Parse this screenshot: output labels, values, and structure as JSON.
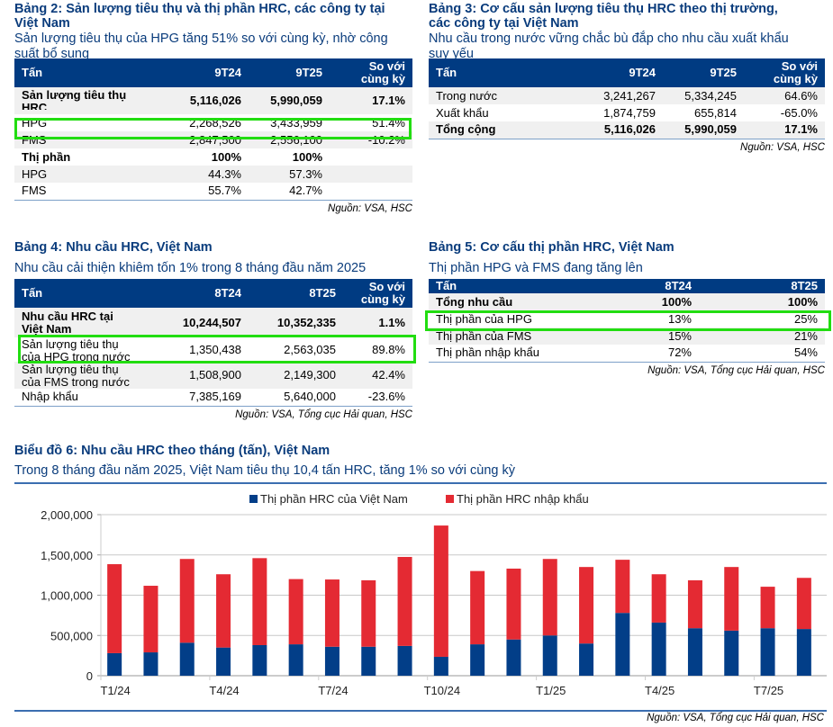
{
  "table2": {
    "title_line1": "Bảng 2: Sản lượng tiêu thụ và thị phần HRC, các công ty tại",
    "title_line2": "Việt Nam",
    "subtitle_line1": "Sản lượng tiêu thụ của HPG tăng 51% so với cùng kỳ, nhờ công",
    "subtitle_line2": "suất bổ sung",
    "headers": [
      "Tấn",
      "9T24",
      "9T25",
      "So với",
      "cùng kỳ"
    ],
    "rows": [
      {
        "label1": "Sản lượng tiêu thụ",
        "label2": "HRC",
        "c1": "5,116,026",
        "c2": "5,990,059",
        "c3": "17.1%"
      },
      {
        "label": "HPG",
        "c1": "2,268,526",
        "c2": "3,433,959",
        "c3": "51.4%"
      },
      {
        "label": "FMS",
        "c1": "2,847,500",
        "c2": "2,556,100",
        "c3": "-10.2%"
      },
      {
        "label": "Thị phần",
        "c1": "100%",
        "c2": "100%",
        "c3": ""
      },
      {
        "label": "HPG",
        "c1": "44.3%",
        "c2": "57.3%",
        "c3": ""
      },
      {
        "label": "FMS",
        "c1": "55.7%",
        "c2": "42.7%",
        "c3": ""
      }
    ],
    "source": "Nguồn: VSA, HSC"
  },
  "table3": {
    "title_line1": "Bảng 3: Cơ cấu sản lượng tiêu thụ HRC theo thị trường,",
    "title_line2": "các công ty tại Việt Nam",
    "subtitle_line1": "Nhu cầu trong nước vững chắc bù đắp cho nhu cầu xuất khẩu",
    "subtitle_line2": "suy yếu",
    "headers": [
      "Tấn",
      "9T24",
      "9T25",
      "So với",
      "cùng kỳ"
    ],
    "rows": [
      {
        "label": "Trong nước",
        "c1": "3,241,267",
        "c2": "5,334,245",
        "c3": "64.6%"
      },
      {
        "label": "Xuất khẩu",
        "c1": "1,874,759",
        "c2": "655,814",
        "c3": "-65.0%"
      },
      {
        "label": "Tổng cộng",
        "c1": "5,116,026",
        "c2": "5,990,059",
        "c3": "17.1%"
      }
    ],
    "source": "Nguồn: VSA, HSC"
  },
  "table4": {
    "title": "Bảng 4: Nhu cầu HRC, Việt Nam",
    "subtitle": "Nhu cầu cải thiện khiêm tốn 1% trong 8 tháng đầu năm 2025",
    "headers": [
      "Tấn",
      "8T24",
      "8T25",
      "So với",
      "cùng kỳ"
    ],
    "rows": [
      {
        "label1": "Nhu cầu HRC tại",
        "label2": "Việt Nam",
        "c1": "10,244,507",
        "c2": "10,352,335",
        "c3": "1.1%"
      },
      {
        "label1": "Sản lượng tiêu thụ",
        "label2": "của HPG trong nước",
        "c1": "1,350,438",
        "c2": "2,563,035",
        "c3": "89.8%"
      },
      {
        "label1": "Sản lượng tiêu thụ",
        "label2": "của FMS trong nước",
        "c1": "1,508,900",
        "c2": "2,149,300",
        "c3": "42.4%"
      },
      {
        "label": "Nhập khẩu",
        "c1": "7,385,169",
        "c2": "5,640,000",
        "c3": "-23.6%"
      }
    ],
    "source": "Nguồn: VSA, Tổng cục Hải quan, HSC"
  },
  "table5": {
    "title": "Bảng 5: Cơ cấu thị phần HRC, Việt Nam",
    "subtitle": "Thị phần HPG và FMS đang tăng lên",
    "headers": [
      "Tấn",
      "8T24",
      "8T25"
    ],
    "rows": [
      {
        "label": "Tổng nhu cầu",
        "c1": "100%",
        "c2": "100%"
      },
      {
        "label": "Thị phần của HPG",
        "c1": "13%",
        "c2": "25%"
      },
      {
        "label": "Thị phần của FMS",
        "c1": "15%",
        "c2": "21%"
      },
      {
        "label": "Thị phần nhập khẩu",
        "c1": "72%",
        "c2": "54%"
      }
    ],
    "source": "Nguồn: VSA, Tổng cục Hải quan, HSC"
  },
  "chart6": {
    "title": "Biểu đồ 6: Nhu cầu HRC theo tháng (tấn), Việt Nam",
    "subtitle": "Trong 8 tháng đầu năm 2025, Việt Nam tiêu thụ 10,4 tấn HRC, tăng 1% so với cùng kỳ",
    "source": "Nguồn: VSA, Tổng cục Hải quan, HSC"
  },
  "chart_data": {
    "type": "bar",
    "stacked": true,
    "title": "Biểu đồ 6: Nhu cầu HRC theo tháng (tấn), Việt Nam",
    "xlabel": "",
    "ylabel": "",
    "ylim": [
      0,
      2000000
    ],
    "yticks": [
      0,
      500000,
      1000000,
      1500000,
      2000000
    ],
    "ytick_labels": [
      "0",
      "500,000",
      "1,000,000",
      "1,500,000",
      "2,000,000"
    ],
    "grid": true,
    "legend": "top-center",
    "categories": [
      "T1/24",
      "T2/24",
      "T3/24",
      "T4/24",
      "T5/24",
      "T6/24",
      "T7/24",
      "T8/24",
      "T9/24",
      "T10/24",
      "T11/24",
      "T12/24",
      "T1/25",
      "T2/25",
      "T3/25",
      "T4/25",
      "T5/25",
      "T6/25",
      "T7/25",
      "T8/25"
    ],
    "xtick_labels": [
      "T1/24",
      "T4/24",
      "T7/24",
      "T10/24",
      "T1/25",
      "T4/25",
      "T7/25"
    ],
    "series": [
      {
        "name": "Thị phần HRC của Việt Nam",
        "color": "#023e88",
        "values": [
          280000,
          290000,
          410000,
          350000,
          380000,
          390000,
          360000,
          360000,
          370000,
          235000,
          390000,
          450000,
          500000,
          400000,
          780000,
          660000,
          590000,
          560000,
          590000,
          580000
        ]
      },
      {
        "name": "Thị phần HRC nhập khẩu",
        "color": "#e42a33",
        "values": [
          1105000,
          827000,
          1040000,
          910000,
          1080000,
          810000,
          835000,
          825000,
          1105000,
          1630000,
          910000,
          880000,
          950000,
          950000,
          660000,
          600000,
          595000,
          790000,
          515000,
          635000
        ]
      }
    ]
  }
}
